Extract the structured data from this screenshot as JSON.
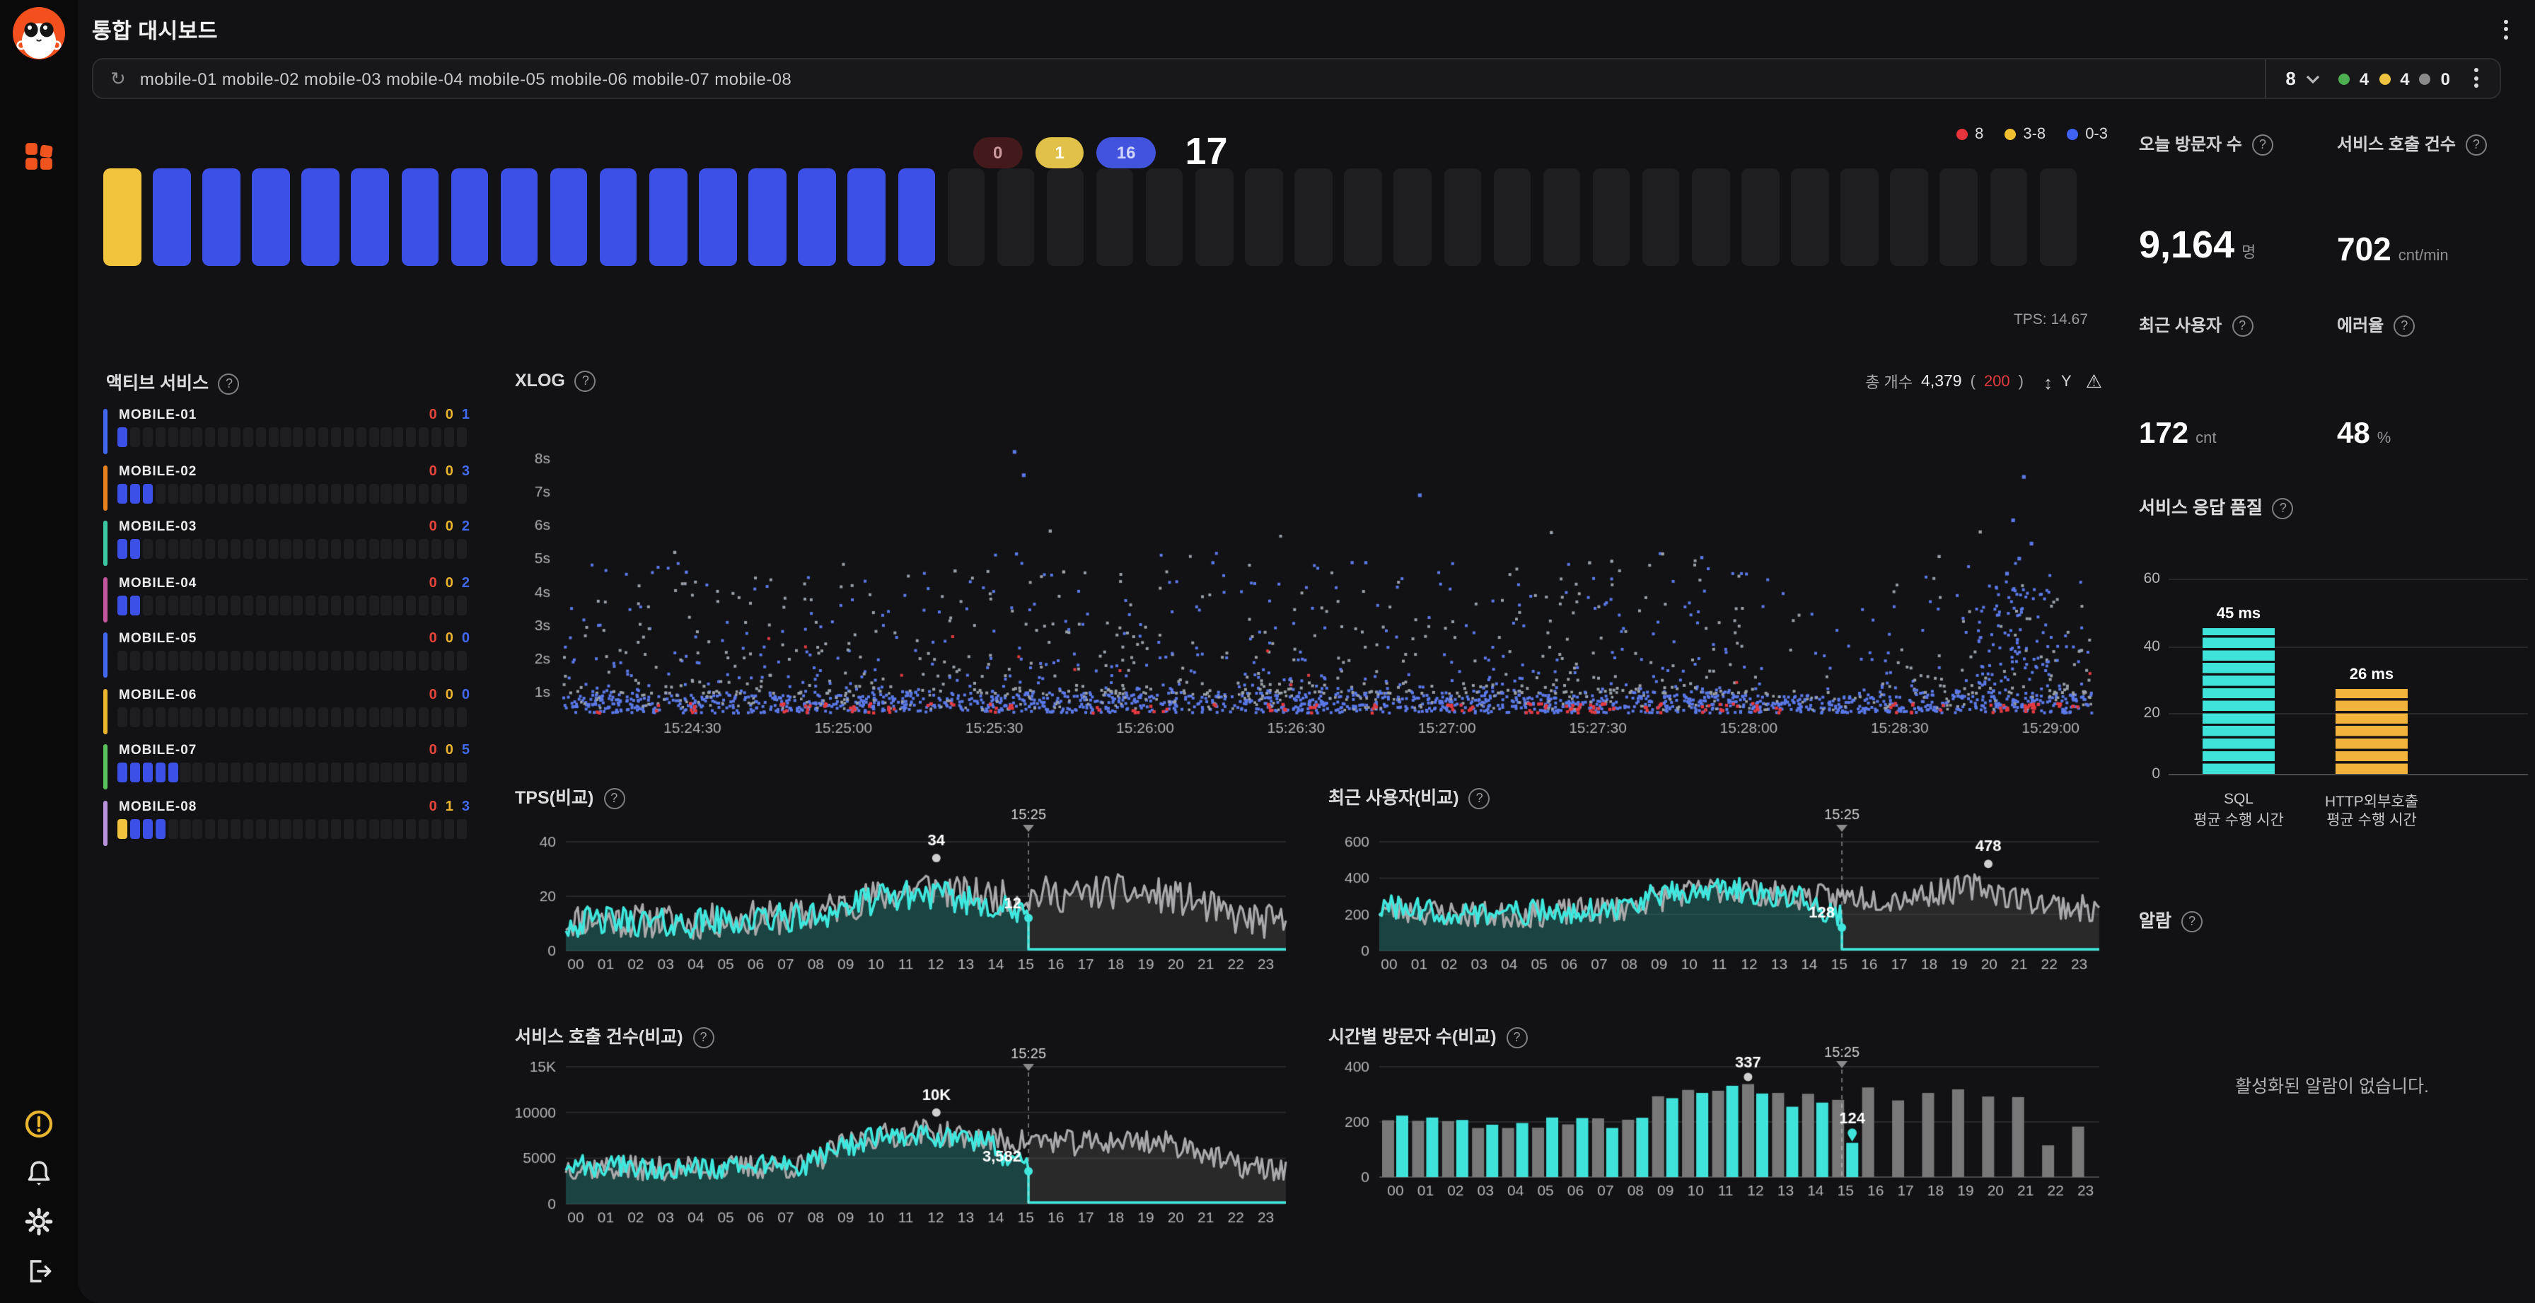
{
  "ui": {
    "help": "?"
  },
  "header": {
    "title": "통합 대시보드"
  },
  "filter": {
    "servers": "mobile-01 mobile-02 mobile-03 mobile-04 mobile-05 mobile-06 mobile-07 mobile-08",
    "count": "8",
    "green": "4",
    "yellow": "4",
    "gray": "0",
    "colors": {
      "green": "#4caf50",
      "yellow": "#eec33f",
      "gray": "#8a8a8a"
    }
  },
  "overview": {
    "pills": [
      {
        "label": "0",
        "bg": "#43191d",
        "fg": "#cc9a9e"
      },
      {
        "label": "1",
        "bg": "#e2c14b",
        "fg": "#ffffff"
      },
      {
        "label": "16",
        "bg": "#4254de",
        "fg": "#d0d6ff"
      }
    ],
    "total": "17",
    "legend": [
      {
        "label": "8",
        "color": "#e8343c"
      },
      {
        "label": "3-8",
        "color": "#f0c030"
      },
      {
        "label": "0-3",
        "color": "#3f63f0"
      }
    ],
    "blocks": {
      "total": 40,
      "yellow": 1,
      "blue": 16,
      "yellow_color": "#f2c43d",
      "blue_color": "#3c50e8",
      "empty_color": "#1e1e21"
    },
    "tps_note": "TPS: 14.67"
  },
  "active_services": {
    "title": "액티브 서비스",
    "cells_total": 28,
    "count_colors": [
      "#e8453c",
      "#edb42e",
      "#4169f0"
    ],
    "palette": {
      "yellow": "#f2c43d",
      "blue": "#3c50e8"
    },
    "rows": [
      {
        "name": "MOBILE-01",
        "accent": "#4169f0",
        "filled": [
          "blue"
        ],
        "counts": [
          "0",
          "0",
          "1"
        ]
      },
      {
        "name": "MOBILE-02",
        "accent": "#e8821e",
        "filled": [
          "blue",
          "blue",
          "blue"
        ],
        "counts": [
          "0",
          "0",
          "3"
        ]
      },
      {
        "name": "MOBILE-03",
        "accent": "#3cc8a2",
        "filled": [
          "blue",
          "blue"
        ],
        "counts": [
          "0",
          "0",
          "2"
        ]
      },
      {
        "name": "MOBILE-04",
        "accent": "#c258a0",
        "filled": [
          "blue",
          "blue"
        ],
        "counts": [
          "0",
          "0",
          "2"
        ]
      },
      {
        "name": "MOBILE-05",
        "accent": "#4169f0",
        "filled": [],
        "counts": [
          "0",
          "0",
          "0"
        ]
      },
      {
        "name": "MOBILE-06",
        "accent": "#edb42e",
        "filled": [],
        "counts": [
          "0",
          "0",
          "0"
        ]
      },
      {
        "name": "MOBILE-07",
        "accent": "#5ac25a",
        "filled": [
          "blue",
          "blue",
          "blue",
          "blue",
          "blue"
        ],
        "counts": [
          "0",
          "0",
          "5"
        ]
      },
      {
        "name": "MOBILE-08",
        "accent": "#b892dc",
        "filled": [
          "yellow",
          "blue",
          "blue",
          "blue"
        ],
        "counts": [
          "0",
          "1",
          "3"
        ]
      }
    ]
  },
  "xlog": {
    "title": "XLOG",
    "total_label": "총 개수",
    "total": "4,379",
    "paren_open": "(",
    "error_count": "200",
    "paren_close": ")",
    "sort_icon": "↕",
    "sort_axis": "Y",
    "warn_icon": "⚠",
    "yticks": [
      "8s",
      "7s",
      "6s",
      "5s",
      "4s",
      "3s",
      "2s",
      "1s"
    ],
    "xticks": [
      "15:24:30",
      "15:25:00",
      "15:25:30",
      "15:26:00",
      "15:26:30",
      "15:27:00",
      "15:27:30",
      "15:28:00",
      "15:28:30",
      "15:29:00"
    ],
    "scatter": {
      "band_points": 1500,
      "band_gray": 260,
      "red_clusters": 55,
      "mid_points": 1150,
      "right_cluster_points": 85,
      "gap": [
        0.775,
        0.862
      ],
      "outliers": [
        [
          0.295,
          8.25
        ],
        [
          0.301,
          7.55
        ],
        [
          0.56,
          6.95
        ],
        [
          0.955,
          7.5
        ],
        [
          0.948,
          6.2
        ],
        [
          0.96,
          5.5
        ],
        [
          0.952,
          5.05
        ],
        [
          0.944,
          4.6
        ]
      ],
      "colors": {
        "blue": "#5b79e8",
        "gray": "#9aa0a8",
        "red": "#e23a40"
      }
    }
  },
  "hours": [
    "00",
    "01",
    "02",
    "03",
    "04",
    "05",
    "06",
    "07",
    "08",
    "09",
    "10",
    "11",
    "12",
    "13",
    "14",
    "15",
    "16",
    "17",
    "18",
    "19",
    "20",
    "21",
    "22",
    "23"
  ],
  "chart_data": {
    "tps": {
      "type": "line",
      "title": "TPS(비교)",
      "yticks": [
        "40",
        "20",
        "0"
      ],
      "gray": [
        11,
        12,
        11,
        11,
        10,
        11,
        12,
        12,
        13,
        16,
        19,
        21,
        24,
        21,
        20,
        19,
        21,
        20,
        22,
        21,
        20,
        18,
        13,
        11,
        10
      ],
      "cyan": [
        10,
        11,
        11,
        10,
        10,
        11,
        11,
        12,
        12,
        15,
        18,
        20,
        21,
        19,
        18,
        13
      ],
      "gray_amp": 6.5,
      "cyan_amp": 5.5,
      "min": 3,
      "end_t": 15.42,
      "end_v": 12,
      "peak": {
        "label": "34",
        "t": 12.35,
        "v": 34
      },
      "current_label": "12",
      "cursor": "15:25"
    },
    "users": {
      "type": "line",
      "title": "최근 사용자(비교)",
      "yticks": [
        "600",
        "400",
        "200",
        "0"
      ],
      "gray": [
        230,
        220,
        210,
        200,
        195,
        200,
        210,
        220,
        230,
        280,
        310,
        330,
        340,
        310,
        300,
        290,
        300,
        285,
        310,
        330,
        360,
        300,
        270,
        240,
        220
      ],
      "cyan": [
        240,
        225,
        215,
        205,
        200,
        210,
        215,
        225,
        235,
        290,
        320,
        340,
        330,
        300,
        290,
        200
      ],
      "gray_amp": 75,
      "cyan_amp": 70,
      "min": 90,
      "end_t": 15.42,
      "end_v": 128,
      "peak": {
        "label": "478",
        "t": 20.3,
        "v": 478
      },
      "current_label": "128",
      "cursor": "15:25"
    },
    "calls": {
      "type": "line",
      "title": "서비스 호출 건수(비교)",
      "yticks": [
        "15K",
        "10000",
        "5000",
        "0"
      ],
      "gray": [
        4100,
        4000,
        3900,
        3800,
        3800,
        3900,
        4000,
        4100,
        4100,
        6000,
        7200,
        7600,
        8000,
        7400,
        7000,
        6800,
        7000,
        6600,
        6800,
        7000,
        6600,
        6200,
        4400,
        3900,
        3700
      ],
      "cyan": [
        4300,
        4150,
        4000,
        3950,
        3900,
        4000,
        4100,
        4200,
        4250,
        5800,
        7000,
        7400,
        7700,
        7100,
        6800,
        4400
      ],
      "gray_amp": 1400,
      "cyan_amp": 1250,
      "min": 2600,
      "end_t": 15.42,
      "end_v": 3582,
      "peak": {
        "label": "10K",
        "t": 12.35,
        "v": 10000
      },
      "current_label": "3,582",
      "cursor": "15:25"
    },
    "visitors": {
      "type": "bar",
      "title": "시간별 방문자 수(비교)",
      "yticks": [
        "400",
        "200",
        "0"
      ],
      "gray": [
        206,
        204,
        203,
        178,
        178,
        179,
        191,
        213,
        208,
        293,
        316,
        313,
        337,
        305,
        302,
        280,
        325,
        278,
        305,
        318,
        292,
        290,
        115,
        183
      ],
      "cyan": [
        223,
        216,
        207,
        190,
        196,
        216,
        214,
        178,
        215,
        286,
        305,
        331,
        303,
        255,
        270,
        124
      ],
      "peak": {
        "label": "337",
        "hour": 12,
        "v": 337
      },
      "current": {
        "label": "124",
        "hour": 15,
        "v": 124
      },
      "cursor": "15:25",
      "colors": {
        "gray": "#787878",
        "cyan": "#3fe3da"
      }
    },
    "quality": {
      "type": "bar",
      "title": "서비스 응답 품질",
      "yticks": [
        "60",
        "40",
        "20",
        "0"
      ],
      "bars": [
        {
          "label": "45 ms",
          "value": 45,
          "color": "#3fe3da",
          "cat1": "SQL",
          "cat2": "평균 수행 시간"
        },
        {
          "label": "26 ms",
          "value": 26,
          "color": "#f2b33d",
          "cat1": "HTTP외부호출",
          "cat2": "평균 수행 시간"
        }
      ]
    }
  },
  "stats": {
    "cards": [
      {
        "title": "오늘 방문자 수",
        "value": "9,164",
        "unit": "명"
      },
      {
        "title": "서비스 호출 건수",
        "value": "702",
        "unit": "cnt/min"
      },
      {
        "title": "최근 사용자",
        "value": "172",
        "unit": "cnt"
      },
      {
        "title": "에러율",
        "value": "48",
        "unit": "%"
      }
    ]
  },
  "alarm": {
    "title": "알람",
    "empty": "활성화된 알람이 없습니다."
  }
}
